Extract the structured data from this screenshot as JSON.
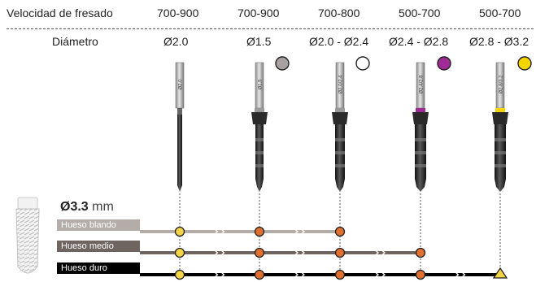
{
  "header": {
    "speed_label": "Velocidad de fresado",
    "diameter_label": "Diámetro",
    "speeds": [
      "700-900",
      "700-900",
      "700-800",
      "500-700",
      "500-700"
    ],
    "diameters": [
      "Ø2.0",
      "Ø1.5",
      "Ø2.0 - Ø2.4",
      "Ø2.4 - Ø2.8",
      "Ø2.8 - Ø3.2"
    ]
  },
  "drills": [
    {
      "id": "d1",
      "engraving": "Ø2.0",
      "color_dot": null,
      "ring_color": null
    },
    {
      "id": "d2",
      "engraving": "Ø1.5",
      "color_dot": "#a9a1a1",
      "ring_color": null
    },
    {
      "id": "d3",
      "engraving": "Ø2.0/2.4",
      "color_dot": "#ffffff",
      "ring_color": null
    },
    {
      "id": "d4",
      "engraving": "Ø2.4/2.8",
      "color_dot": "#a02a96",
      "ring_color": "#a02a96"
    },
    {
      "id": "d5",
      "engraving": "Ø2.8/3.2",
      "color_dot": "#f5d500",
      "ring_color": "#f5d500"
    }
  ],
  "implant": {
    "diameter": "Ø3.3",
    "unit": "mm"
  },
  "bones": [
    {
      "label": "Hueso blando",
      "color": "#b3aca8",
      "steps": 3
    },
    {
      "label": "Hueso medio",
      "color": "#6f6560",
      "steps": 4
    },
    {
      "label": "Hueso duro",
      "color": "#000000",
      "steps": 5
    }
  ],
  "colors": {
    "first_step": "#f5d547",
    "step": "#e07030",
    "final_marker": "#f5d547",
    "dashed_line": "#555555"
  }
}
